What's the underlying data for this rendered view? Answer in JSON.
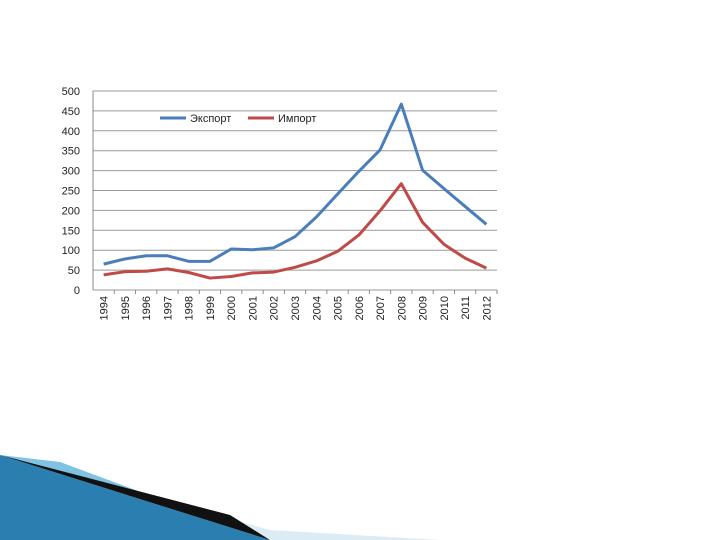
{
  "chart_data": {
    "type": "line",
    "categories": [
      "1994",
      "1995",
      "1996",
      "1997",
      "1998",
      "1999",
      "2000",
      "2001",
      "2002",
      "2003",
      "2004",
      "2005",
      "2006",
      "2007",
      "2008",
      "2009",
      "2010",
      "2011",
      "2012"
    ],
    "series": [
      {
        "name": "Экспорт",
        "color": "#4a7ebb",
        "values": [
          65,
          78,
          86,
          86,
          72,
          72,
          103,
          101,
          106,
          134,
          183,
          241,
          298,
          352,
          467,
          301,
          255,
          210,
          165
        ]
      },
      {
        "name": "Импорт",
        "color": "#be4b48",
        "values": [
          38,
          46,
          47,
          53,
          44,
          30,
          34,
          43,
          45,
          57,
          73,
          97,
          138,
          199,
          267,
          170,
          115,
          80,
          55
        ]
      }
    ],
    "ylim": [
      0,
      500
    ],
    "yticks": [
      0,
      50,
      100,
      150,
      200,
      250,
      300,
      350,
      400,
      450,
      500
    ],
    "grid": true,
    "legend": "top"
  }
}
